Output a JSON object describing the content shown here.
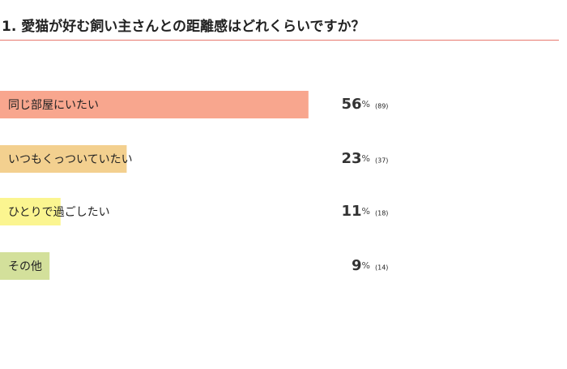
{
  "chart_data": {
    "type": "bar",
    "orientation": "horizontal",
    "title": "1. 愛猫が好む飼い主さんとの距離感はどれくらいですか？",
    "categories": [
      "同じ部屋にいたい",
      "いつもくっついていたい",
      "ひとりで過ごしたい",
      "その他"
    ],
    "values": [
      56,
      23,
      11,
      9
    ],
    "unit": "%",
    "count_labels": [
      "(89)",
      "(37)",
      "(18)",
      "(14)"
    ],
    "colors": [
      "#f8a68e",
      "#f3d08f",
      "#fbf590",
      "#d3e09b"
    ],
    "xlim": [
      0,
      100
    ]
  }
}
